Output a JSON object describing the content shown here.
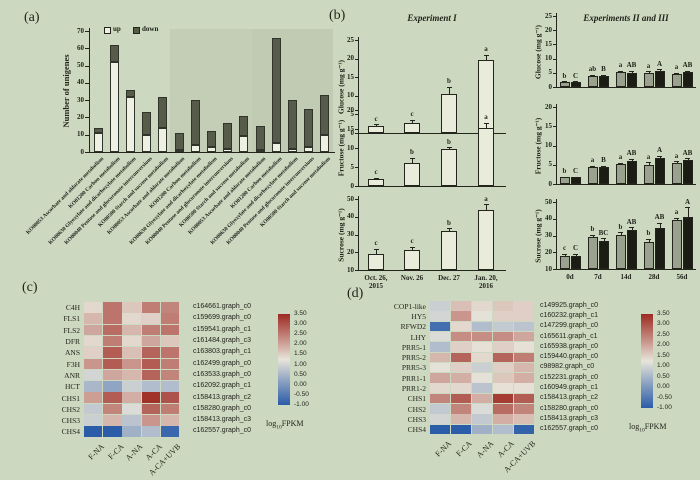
{
  "background": "#ccd8c0",
  "panel_labels": {
    "a": "(a)",
    "b": "(b)",
    "c": "(c)",
    "d": "(d)"
  },
  "heatmap_palette": {
    "low": "#2a5ca8",
    "mid": "#e8e4da",
    "high": "#9e2a22"
  },
  "chart_data": [
    {
      "id": "unigenes",
      "type": "bar",
      "stacked": true,
      "ylabel": "Number of unigenes",
      "ylim": [
        0,
        70
      ],
      "yticks": [
        0,
        10,
        20,
        30,
        40,
        50,
        60,
        70
      ],
      "legend": [
        {
          "label": "up",
          "color": "#eef0e1"
        },
        {
          "label": "down",
          "color": "#575b49"
        }
      ],
      "categories": [
        "KO00053 Ascorbate and aldarate metabolism",
        "KO01200 Carbon metabolism",
        "KO00630 Glyoxylate and dicarboxylate metabolism",
        "KO00040 Pentose and glucuronate interconversions",
        "KO00500 Starch and sucrose metabolism",
        "KO00053 Ascorbate and aldarate metabolism",
        "KO01200 Carbon metabolism",
        "KO00630 Glyoxylate and dicarboxylate metabolism",
        "KO00040 Pentose and glucuronate interconversions",
        "KO00500 Starch and sucrose metabolism",
        "KO00053 Ascorbate and aldarate metabolism",
        "KO01200 Carbon metabolism",
        "KO00630 Glyoxylate and dicarboxylate metabolism",
        "KO00040 Pentose and glucuronate interconversions",
        "KO00500 Starch and sucrose metabolism"
      ],
      "series": [
        {
          "name": "up",
          "values": [
            11,
            52,
            32,
            10,
            14,
            1,
            4,
            3,
            2,
            9,
            1,
            5,
            2,
            3,
            10
          ]
        },
        {
          "name": "down",
          "values": [
            3,
            10,
            4,
            13,
            18,
            10,
            26,
            9,
            15,
            12,
            14,
            61,
            28,
            22,
            23
          ]
        }
      ]
    },
    {
      "id": "exp1-glucose",
      "type": "bar",
      "title": "Experiment I",
      "ylabel": "Glucose (mg g⁻¹)",
      "ylim": [
        0,
        25
      ],
      "yticks": [
        0,
        5,
        10,
        15,
        20,
        25
      ],
      "categories": [
        "Oct. 26,\n2015",
        "Nov. 26",
        "Dec. 27",
        "Jan. 20,\n2016"
      ],
      "values": [
        1.8,
        2.8,
        10.5,
        19.5
      ],
      "errors": [
        0.6,
        0.7,
        2.0,
        1.6
      ],
      "letters": [
        "c",
        "c",
        "b",
        "a"
      ]
    },
    {
      "id": "exp1-fructose",
      "type": "bar",
      "ylabel": "Fructose (mg g⁻¹)",
      "ylim": [
        0,
        20
      ],
      "yticks": [
        0,
        5,
        10,
        15,
        20
      ],
      "categories": [
        "Oct. 26,\n2015",
        "Nov. 26",
        "Dec. 27",
        "Jan. 20,\n2016"
      ],
      "values": [
        1.8,
        6.0,
        9.7,
        15.3
      ],
      "errors": [
        0.4,
        1.5,
        0.5,
        1.3
      ],
      "letters": [
        "c",
        "b",
        "b",
        "a"
      ]
    },
    {
      "id": "exp1-sucrose",
      "type": "bar",
      "ylabel": "Sucrose (mg g⁻¹)",
      "ylim": [
        10,
        50
      ],
      "yticks": [
        10,
        20,
        30,
        40,
        50
      ],
      "categories": [
        "Oct. 26,\n2015",
        "Nov. 26",
        "Dec. 27",
        "Jan. 20,\n2016"
      ],
      "values": [
        19,
        21.5,
        32,
        44
      ],
      "errors": [
        3.0,
        1.5,
        1.5,
        3.0
      ],
      "letters": [
        "c",
        "c",
        "b",
        "a"
      ]
    },
    {
      "id": "exp23-glucose",
      "type": "grouped-bar",
      "title": "Experiments II and III",
      "ylabel": "Glucose (mg g⁻¹)",
      "ylim": [
        0,
        25
      ],
      "yticks": [
        0,
        5,
        10,
        15,
        20,
        25
      ],
      "categories": [
        "0d",
        "7d",
        "14d",
        "28d",
        "56d"
      ],
      "series": [
        {
          "name": "Experiment II",
          "color": "#9aa28f",
          "values": [
            1.8,
            4.0,
            5.2,
            5.0,
            4.5
          ],
          "errors": [
            0.3,
            0.4,
            0.5,
            0.6,
            0.5
          ],
          "letters": [
            "b",
            "ab",
            "a",
            "a",
            "a"
          ]
        },
        {
          "name": "Experiment III",
          "color": "#1b1c14",
          "values": [
            1.8,
            4.0,
            5.0,
            5.8,
            5.2
          ],
          "errors": [
            0.3,
            0.4,
            0.8,
            0.5,
            0.6
          ],
          "letters": [
            "C",
            "B",
            "AB",
            "A",
            "AB"
          ]
        }
      ]
    },
    {
      "id": "exp23-fructose",
      "type": "grouped-bar",
      "ylabel": "Fructose (mg g⁻¹)",
      "ylim": [
        0,
        20
      ],
      "yticks": [
        0,
        5,
        10,
        15,
        20
      ],
      "categories": [
        "0d",
        "7d",
        "14d",
        "28d",
        "56d"
      ],
      "series": [
        {
          "name": "Experiment II",
          "color": "#9aa28f",
          "values": [
            1.7,
            4.4,
            5.1,
            5.0,
            5.5
          ],
          "errors": [
            0.2,
            0.4,
            0.4,
            0.6,
            0.4
          ],
          "letters": [
            "b",
            "a",
            "a",
            "a",
            "a"
          ]
        },
        {
          "name": "Experiment III",
          "color": "#1b1c14",
          "values": [
            1.7,
            4.3,
            6.0,
            6.8,
            6.2
          ],
          "errors": [
            0.2,
            0.4,
            0.5,
            0.5,
            0.5
          ],
          "letters": [
            "C",
            "B",
            "AB",
            "A",
            "AB"
          ]
        }
      ]
    },
    {
      "id": "exp23-sucrose",
      "type": "grouped-bar",
      "ylabel": "Sucrose (mg g⁻¹)",
      "ylim": [
        10,
        50
      ],
      "yticks": [
        10,
        20,
        30,
        40,
        50
      ],
      "categories": [
        "0d",
        "7d",
        "14d",
        "28d",
        "56d"
      ],
      "series": [
        {
          "name": "Experiment II",
          "color": "#9aa28f",
          "values": [
            18,
            29,
            30.5,
            26,
            39
          ],
          "errors": [
            1.0,
            1.5,
            1.5,
            2.0,
            1.5
          ],
          "letters": [
            "c",
            "b",
            "b",
            "b",
            "a"
          ]
        },
        {
          "name": "Experiment III",
          "color": "#1b1c14",
          "values": [
            18,
            27,
            33.5,
            34.5,
            41
          ],
          "errors": [
            1.0,
            1.5,
            1.5,
            3.0,
            6.0
          ],
          "letters": [
            "C",
            "BC",
            "AB",
            "AB",
            "A"
          ]
        }
      ]
    },
    {
      "id": "heatmap-c",
      "type": "heatmap",
      "rows": [
        "C4H",
        "FLS1",
        "FLS2",
        "DFR",
        "ANS",
        "F3H",
        "ANR",
        "HCT",
        "CHS1",
        "CHS2",
        "CHS3",
        "CHS4"
      ],
      "row_ids": [
        "c164661.graph_c0",
        "c159699.graph_c0",
        "c159541.graph_c1",
        "c161484.graph_c3",
        "c163803.graph_c1",
        "c162499.graph_c0",
        "c163533.graph_c0",
        "c162092.graph_c1",
        "c158413.graph_c2",
        "c158280.graph_c0",
        "c158413.graph_c3",
        "c162557.graph_c0"
      ],
      "cols": [
        "F-NA",
        "F-CA",
        "A-NA",
        "A-CA",
        "A-CA+UVB"
      ],
      "values": [
        [
          1.4,
          2.6,
          1.6,
          2.5,
          2.4
        ],
        [
          1.8,
          2.6,
          1.4,
          1.5,
          2.5
        ],
        [
          2.0,
          2.7,
          1.8,
          2.5,
          2.6
        ],
        [
          1.4,
          2.5,
          1.4,
          2.0,
          1.6
        ],
        [
          1.5,
          2.9,
          1.7,
          2.8,
          2.6
        ],
        [
          2.2,
          2.9,
          2.2,
          2.9,
          2.5
        ],
        [
          1.0,
          2.0,
          1.8,
          2.8,
          2.4
        ],
        [
          0.5,
          0.2,
          0.9,
          0.6,
          0.6
        ],
        [
          2.1,
          2.9,
          1.9,
          3.4,
          3.0
        ],
        [
          0.8,
          2.4,
          1.1,
          2.8,
          2.5
        ],
        [
          0.9,
          1.8,
          0.7,
          2.2,
          1.8
        ],
        [
          -1.0,
          -1.0,
          0.4,
          0.6,
          -0.8
        ]
      ],
      "scale": {
        "min": -1,
        "max": 3.5,
        "ticks": [
          "3.50",
          "3.00",
          "2.50",
          "2.00",
          "1.50",
          "1.00",
          "0.50",
          "0.00",
          "-0.50",
          "-1.00"
        ],
        "label_pre": "log",
        "label_sub": "10",
        "label_post": "FPKM"
      }
    },
    {
      "id": "heatmap-d",
      "type": "heatmap",
      "rows": [
        "COP1-like",
        "HY5",
        "RFWD2",
        "LHY",
        "PRR5-1",
        "PRR5-2",
        "PRR5-3",
        "PRR1-1",
        "PRR1-2",
        "CHS1",
        "CHS2",
        "CHS3",
        "CHS4"
      ],
      "row_ids": [
        "c149925.graph_c0",
        "c160232.graph_c1",
        "c147299.graph_c0",
        "c165611.graph_c1",
        "c165938.graph_c0",
        "c159440.graph_c0",
        "c98982.graph_c0",
        "c152231.graph_c0",
        "c160949.graph_c1",
        "c158413.graph_c2",
        "c158280.graph_c0",
        "c158413.graph_c3",
        "c162557.graph_c0"
      ],
      "cols": [
        "F-NA",
        "F-CA",
        "A-NA",
        "A-CA",
        "A-CA+UVB"
      ],
      "values": [
        [
          0.9,
          1.7,
          1.4,
          1.6,
          1.5
        ],
        [
          1.0,
          2.2,
          1.2,
          1.5,
          1.5
        ],
        [
          -0.7,
          1.4,
          0.6,
          0.8,
          0.7
        ],
        [
          1.1,
          2.3,
          2.3,
          2.3,
          2.0
        ],
        [
          0.6,
          1.5,
          1.3,
          1.5,
          1.3
        ],
        [
          1.8,
          2.8,
          1.4,
          2.8,
          2.5
        ],
        [
          1.2,
          1.5,
          0.9,
          1.5,
          1.8
        ],
        [
          2.0,
          1.9,
          1.2,
          1.6,
          1.9
        ],
        [
          1.4,
          1.4,
          0.7,
          1.3,
          1.3
        ],
        [
          2.4,
          2.9,
          1.9,
          3.3,
          2.9
        ],
        [
          0.8,
          2.4,
          1.1,
          2.7,
          2.4
        ],
        [
          1.0,
          1.8,
          0.8,
          1.9,
          1.7
        ],
        [
          -1.0,
          -1.0,
          0.4,
          0.6,
          -0.9
        ]
      ],
      "scale": {
        "min": -1,
        "max": 3.5,
        "ticks": [
          "3.50",
          "3.00",
          "2.50",
          "2.00",
          "1.50",
          "1.00",
          "0.50",
          "0.00",
          "-0.50",
          "-1.00"
        ],
        "label_pre": "log",
        "label_sub": "10",
        "label_post": "FPKM"
      }
    }
  ]
}
